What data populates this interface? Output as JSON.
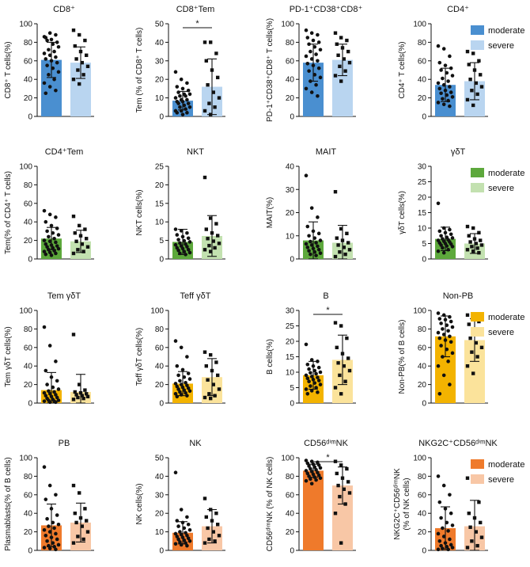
{
  "figure": {
    "legends": [
      {
        "row": 0,
        "items": [
          {
            "label": "moderate",
            "color": "#4a8fd0"
          },
          {
            "label": "severe",
            "color": "#b9d5f0"
          }
        ]
      },
      {
        "row": 1,
        "items": [
          {
            "label": "moderate",
            "color": "#5da83c"
          },
          {
            "label": "severe",
            "color": "#c3e1b0"
          }
        ]
      },
      {
        "row": 2,
        "items": [
          {
            "label": "moderate",
            "color": "#f3b300"
          },
          {
            "label": "severe",
            "color": "#fbe39b"
          }
        ]
      },
      {
        "row": 3,
        "items": [
          {
            "label": "moderate",
            "color": "#ef7a2b"
          },
          {
            "label": "severe",
            "color": "#f8c7a6"
          }
        ]
      }
    ]
  },
  "chart_data": [
    {
      "type": "bar",
      "title": "CD8⁺",
      "ylabel": [
        "CD8⁺ T cells(%)"
      ],
      "ylim": [
        0,
        100
      ],
      "ticks": [
        0,
        20,
        40,
        60,
        80,
        100
      ],
      "categories": [
        "moderate",
        "severe"
      ],
      "values": [
        61,
        58
      ],
      "errors": [
        19,
        17
      ],
      "significance": "",
      "points": [
        [
          86,
          90,
          88,
          85,
          83,
          80,
          82,
          78,
          75,
          72,
          70,
          68,
          66,
          64,
          62,
          60,
          58,
          55,
          52,
          48,
          45,
          40,
          36,
          32,
          28,
          25
        ],
        [
          93,
          88,
          82,
          76,
          70,
          66,
          62,
          58,
          54,
          50,
          45,
          40,
          35
        ]
      ]
    },
    {
      "type": "bar",
      "title": "CD8⁺Tem",
      "ylabel": [
        "Tem (% of CD8⁺ T cells)"
      ],
      "ylim": [
        0,
        50
      ],
      "ticks": [
        0,
        10,
        20,
        30,
        40,
        50
      ],
      "categories": [
        "moderate",
        "severe"
      ],
      "values": [
        8.5,
        16
      ],
      "errors": [
        5,
        15
      ],
      "significance": "*",
      "points": [
        [
          24,
          20,
          18,
          16,
          15,
          14,
          13,
          12,
          12,
          11,
          11,
          10,
          9,
          9,
          8,
          8,
          7,
          7,
          6,
          5,
          5,
          4,
          3,
          3,
          2,
          2,
          1
        ],
        [
          40,
          40,
          34,
          30,
          25,
          21,
          17,
          13,
          10,
          7,
          5,
          3,
          1
        ]
      ]
    },
    {
      "type": "bar",
      "title": "PD-1⁺CD38⁺CD8⁺",
      "ylabel": [
        "PD-1⁺CD38⁺CD8⁺ T cells(%)"
      ],
      "ylim": [
        0,
        100
      ],
      "ticks": [
        0,
        20,
        40,
        60,
        80,
        100
      ],
      "categories": [
        "moderate",
        "severe"
      ],
      "values": [
        58,
        61
      ],
      "errors": [
        20,
        17
      ],
      "significance": "",
      "points": [
        [
          93,
          90,
          88,
          85,
          82,
          80,
          78,
          75,
          72,
          70,
          67,
          65,
          62,
          60,
          57,
          55,
          52,
          49,
          45,
          42,
          38,
          34,
          30,
          26,
          22
        ],
        [
          90,
          85,
          82,
          78,
          74,
          70,
          66,
          62,
          58,
          54,
          49,
          44,
          38
        ]
      ]
    },
    {
      "type": "bar",
      "title": "CD4⁺",
      "ylabel": [
        "CD4⁺ T cells(%)"
      ],
      "ylim": [
        0,
        100
      ],
      "ticks": [
        0,
        20,
        40,
        60,
        80,
        100
      ],
      "categories": [
        "moderate",
        "severe"
      ],
      "values": [
        34,
        38
      ],
      "errors": [
        18,
        20
      ],
      "significance": "",
      "points": [
        [
          76,
          73,
          65,
          58,
          55,
          52,
          50,
          47,
          44,
          41,
          38,
          36,
          34,
          32,
          30,
          28,
          26,
          25,
          23,
          21,
          19,
          17,
          15,
          13,
          11
        ],
        [
          70,
          68,
          60,
          56,
          50,
          45,
          40,
          36,
          32,
          28,
          24,
          18,
          12
        ]
      ]
    },
    {
      "type": "bar",
      "title": "CD4⁺Tem",
      "ylabel": [
        "Tem(% of CD4⁺ T cells)"
      ],
      "ylim": [
        0,
        100
      ],
      "ticks": [
        0,
        20,
        40,
        60,
        80,
        100
      ],
      "categories": [
        "moderate",
        "severe"
      ],
      "values": [
        22,
        19
      ],
      "errors": [
        12,
        12
      ],
      "significance": "",
      "points": [
        [
          52,
          48,
          45,
          40,
          36,
          33,
          30,
          28,
          26,
          24,
          22,
          20,
          19,
          18,
          16,
          15,
          14,
          13,
          12,
          11,
          10,
          9,
          8,
          7,
          6,
          5,
          4
        ],
        [
          46,
          36,
          32,
          28,
          25,
          22,
          19,
          16,
          13,
          10,
          8,
          6
        ]
      ]
    },
    {
      "type": "bar",
      "title": "NKT",
      "ylabel": [
        "NKT cells(%)"
      ],
      "ylim": [
        0,
        25
      ],
      "ticks": [
        0,
        5,
        10,
        15,
        20,
        25
      ],
      "categories": [
        "moderate",
        "severe"
      ],
      "values": [
        4.6,
        6.2
      ],
      "errors": [
        3.4,
        5.5
      ],
      "significance": "",
      "points": [
        [
          8,
          7.6,
          7,
          6.5,
          6,
          5.6,
          5.2,
          4.9,
          4.6,
          4.3,
          4,
          3.8,
          3.5,
          3.3,
          3,
          2.8,
          2.5,
          2.3,
          2,
          1.7,
          1.5,
          1.2
        ],
        [
          22,
          11,
          9.5,
          8,
          7,
          6.3,
          5.5,
          4.8,
          4.2,
          3.6,
          3,
          2.5,
          2
        ]
      ]
    },
    {
      "type": "bar",
      "title": "MAIT",
      "ylabel": [
        "MAIT(%)"
      ],
      "ylim": [
        0,
        40
      ],
      "ticks": [
        0,
        10,
        20,
        30,
        40
      ],
      "categories": [
        "moderate",
        "severe"
      ],
      "values": [
        8,
        7
      ],
      "errors": [
        8,
        7.5
      ],
      "significance": "",
      "points": [
        [
          36,
          22,
          18,
          14,
          12,
          11,
          10,
          9,
          8,
          7.5,
          7,
          6.5,
          6,
          5.5,
          5,
          4.5,
          4,
          3.5,
          3,
          2.5,
          2,
          1.5
        ],
        [
          29,
          13,
          11,
          9,
          8,
          7,
          6,
          5,
          4,
          3,
          2,
          1
        ]
      ]
    },
    {
      "type": "bar",
      "title": "γδT",
      "ylabel": [
        "γδT cells(%)"
      ],
      "ylim": [
        0,
        30
      ],
      "ticks": [
        0,
        5,
        10,
        15,
        20,
        25,
        30
      ],
      "categories": [
        "moderate",
        "severe"
      ],
      "values": [
        6.5,
        5
      ],
      "errors": [
        3.8,
        3.2
      ],
      "significance": "",
      "points": [
        [
          18,
          10,
          9.5,
          9,
          8.5,
          8,
          7.5,
          7,
          6.8,
          6.5,
          6.2,
          6,
          5.7,
          5.5,
          5.2,
          5,
          4.8,
          4.5,
          4.2,
          4,
          3.6,
          3,
          2.5,
          2
        ],
        [
          10.5,
          10,
          8.5,
          7.5,
          6.5,
          6,
          5.5,
          5,
          4.5,
          4,
          3.5,
          3,
          2.5,
          2
        ]
      ]
    },
    {
      "type": "bar",
      "title": "Tem γδT",
      "ylabel": [
        "Tem γδT cells(%)"
      ],
      "ylim": [
        0,
        100
      ],
      "ticks": [
        0,
        20,
        40,
        60,
        80,
        100
      ],
      "categories": [
        "moderate",
        "severe"
      ],
      "values": [
        14,
        12
      ],
      "errors": [
        19,
        19
      ],
      "significance": "",
      "points": [
        [
          82,
          62,
          45,
          35,
          28,
          24,
          20,
          17,
          15,
          13,
          12,
          11,
          10,
          9,
          8,
          7,
          6,
          5,
          4,
          3,
          3,
          2,
          2,
          1,
          1
        ],
        [
          74,
          20,
          14,
          12,
          11,
          10,
          9,
          8,
          7,
          6,
          5,
          4
        ]
      ]
    },
    {
      "type": "bar",
      "title": "Teff γδT",
      "ylabel": [
        "Teff γδT cells(%)"
      ],
      "ylim": [
        0,
        100
      ],
      "ticks": [
        0,
        20,
        40,
        60,
        80,
        100
      ],
      "categories": [
        "moderate",
        "severe"
      ],
      "values": [
        21,
        28
      ],
      "errors": [
        13,
        20
      ],
      "significance": "",
      "points": [
        [
          67,
          60,
          50,
          40,
          36,
          32,
          30,
          28,
          26,
          24,
          22,
          21,
          20,
          19,
          18,
          17,
          16,
          15,
          14,
          13,
          12,
          11,
          10,
          9,
          8,
          7
        ],
        [
          55,
          52,
          44,
          40,
          35,
          30,
          25,
          20,
          15,
          10,
          8,
          6,
          5
        ]
      ]
    },
    {
      "type": "bar",
      "title": "B",
      "ylabel": [
        "B cells(%)"
      ],
      "ylim": [
        0,
        30
      ],
      "ticks": [
        0,
        5,
        10,
        15,
        20,
        25,
        30
      ],
      "categories": [
        "moderate",
        "severe"
      ],
      "values": [
        9,
        14
      ],
      "errors": [
        4.5,
        8
      ],
      "significance": "*",
      "points": [
        [
          19,
          14,
          13.5,
          12.5,
          12,
          11.5,
          11,
          10.5,
          10,
          9.8,
          9.5,
          9,
          8.6,
          8.3,
          8,
          7.6,
          7.3,
          7,
          6.5,
          6,
          5.5,
          5,
          4.5,
          4,
          3.5,
          3
        ],
        [
          26,
          25,
          21,
          18,
          16,
          14.5,
          13,
          12,
          10.5,
          9,
          7,
          5,
          3
        ]
      ]
    },
    {
      "type": "bar",
      "title": "Non-PB",
      "ylabel": [
        "Non-PB(% of B cells)"
      ],
      "ylim": [
        0,
        100
      ],
      "ticks": [
        0,
        20,
        40,
        60,
        80,
        100
      ],
      "categories": [
        "moderate",
        "severe"
      ],
      "values": [
        72,
        68
      ],
      "errors": [
        22,
        23
      ],
      "significance": "",
      "points": [
        [
          97,
          95,
          93,
          91,
          90,
          88,
          86,
          84,
          82,
          80,
          78,
          76,
          74,
          72,
          70,
          68,
          66,
          62,
          58,
          54,
          50,
          45,
          40,
          30,
          20,
          10
        ],
        [
          95,
          92,
          88,
          85,
          80,
          75,
          70,
          65,
          60,
          55,
          50,
          40,
          32
        ]
      ]
    },
    {
      "type": "bar",
      "title": "PB",
      "ylabel": [
        "Plasmablasts(% of B cells)"
      ],
      "ylim": [
        0,
        100
      ],
      "ticks": [
        0,
        20,
        40,
        60,
        80,
        100
      ],
      "categories": [
        "moderate",
        "severe"
      ],
      "values": [
        27,
        30
      ],
      "errors": [
        23,
        21
      ],
      "significance": "",
      "points": [
        [
          90,
          70,
          60,
          55,
          45,
          38,
          34,
          30,
          28,
          26,
          24,
          22,
          20,
          18,
          16,
          14,
          12,
          10,
          8,
          6,
          5,
          4,
          3,
          2,
          1
        ],
        [
          70,
          62,
          45,
          40,
          35,
          32,
          30,
          26,
          20,
          15,
          12,
          8
        ]
      ]
    },
    {
      "type": "bar",
      "title": "NK",
      "ylabel": [
        "NK cells(%)"
      ],
      "ylim": [
        0,
        50
      ],
      "ticks": [
        0,
        10,
        20,
        30,
        40,
        50
      ],
      "categories": [
        "moderate",
        "severe"
      ],
      "values": [
        9.5,
        13
      ],
      "errors": [
        6,
        9
      ],
      "significance": "",
      "points": [
        [
          42,
          22,
          18,
          16,
          15,
          14,
          13,
          12,
          11,
          10,
          9.5,
          9,
          8.5,
          8,
          7.5,
          7,
          6.5,
          6,
          5.5,
          5,
          4.5,
          4,
          3.5,
          3,
          2.5
        ],
        [
          28,
          22,
          20,
          18,
          16,
          14,
          12,
          10,
          8,
          6,
          5,
          4
        ]
      ]
    },
    {
      "type": "bar",
      "title": "CD56ᵈⁱᵐNK",
      "ylabel": [
        "CD56ᵈⁱᵐNK  (% of NK cells)"
      ],
      "ylim": [
        0,
        100
      ],
      "ticks": [
        0,
        20,
        40,
        60,
        80,
        100
      ],
      "categories": [
        "moderate",
        "severe"
      ],
      "values": [
        86,
        70
      ],
      "errors": [
        7,
        20
      ],
      "significance": "*",
      "points": [
        [
          97,
          96,
          95,
          94,
          93,
          92,
          91,
          90,
          89,
          88,
          87,
          86,
          85,
          84,
          83,
          82,
          81,
          80,
          79,
          78,
          77,
          76,
          75,
          72
        ],
        [
          96,
          92,
          88,
          83,
          78,
          74,
          70,
          66,
          62,
          58,
          50,
          40,
          8
        ]
      ]
    },
    {
      "type": "bar",
      "title": "NKG2C⁺CD56ᵈⁱᵐNK",
      "ylabel": [
        "NKG2C⁺CD56ᵈⁱᵐNK",
        "(% of NK cells)"
      ],
      "ylim": [
        0,
        100
      ],
      "ticks": [
        0,
        20,
        40,
        60,
        80,
        100
      ],
      "categories": [
        "moderate",
        "severe"
      ],
      "values": [
        24,
        26
      ],
      "errors": [
        23,
        28
      ],
      "significance": "",
      "points": [
        [
          80,
          70,
          60,
          52,
          45,
          40,
          35,
          30,
          27,
          24,
          21,
          18,
          15,
          12,
          10,
          8,
          6,
          5,
          4,
          3,
          2,
          1,
          1
        ],
        [
          78,
          75,
          52,
          40,
          35,
          30,
          25,
          20,
          14,
          10,
          5,
          3
        ]
      ]
    }
  ]
}
